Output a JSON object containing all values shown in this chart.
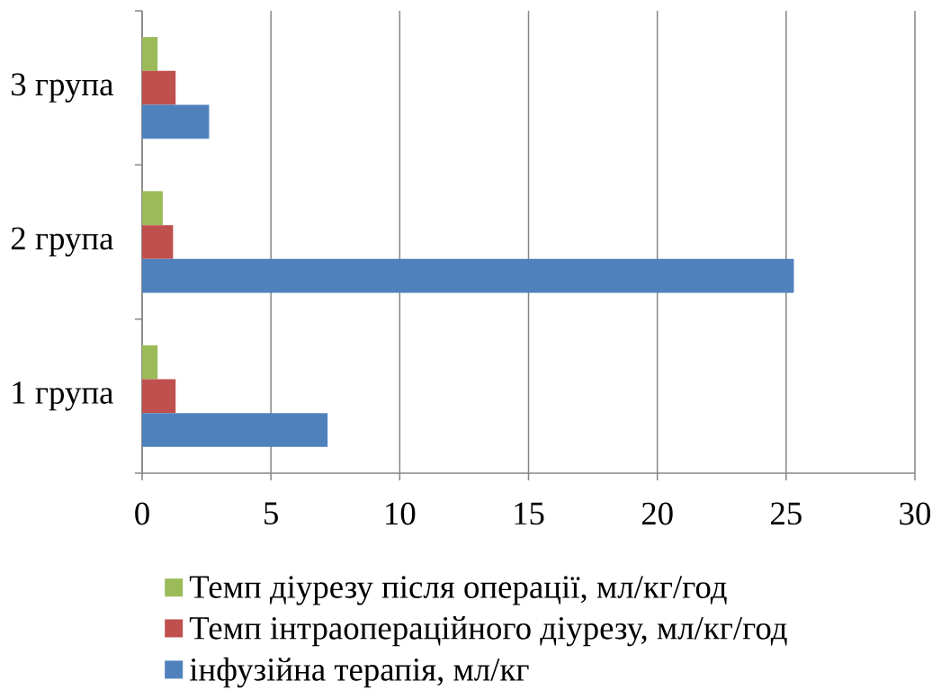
{
  "chart_data": {
    "type": "bar",
    "orientation": "horizontal",
    "categories": [
      "3 група",
      "2 група",
      "1 група"
    ],
    "series": [
      {
        "name": "Темп діурезу після операції, мл/кг/год",
        "color": "#9bbb59",
        "values": [
          0.6,
          0.8,
          0.6
        ]
      },
      {
        "name": "Темп інтраопераційного діурезу, мл/кг/год",
        "color": "#c0504d",
        "values": [
          1.3,
          1.2,
          1.3
        ]
      },
      {
        "name": "інфузійна терапія, мл/кг",
        "color": "#4f81bd",
        "values": [
          2.6,
          25.3,
          7.2
        ]
      }
    ],
    "xlim": [
      0,
      30
    ],
    "xticks": [
      0,
      5,
      10,
      15,
      20,
      25,
      30
    ],
    "grid": "x",
    "legend": "bottom"
  }
}
